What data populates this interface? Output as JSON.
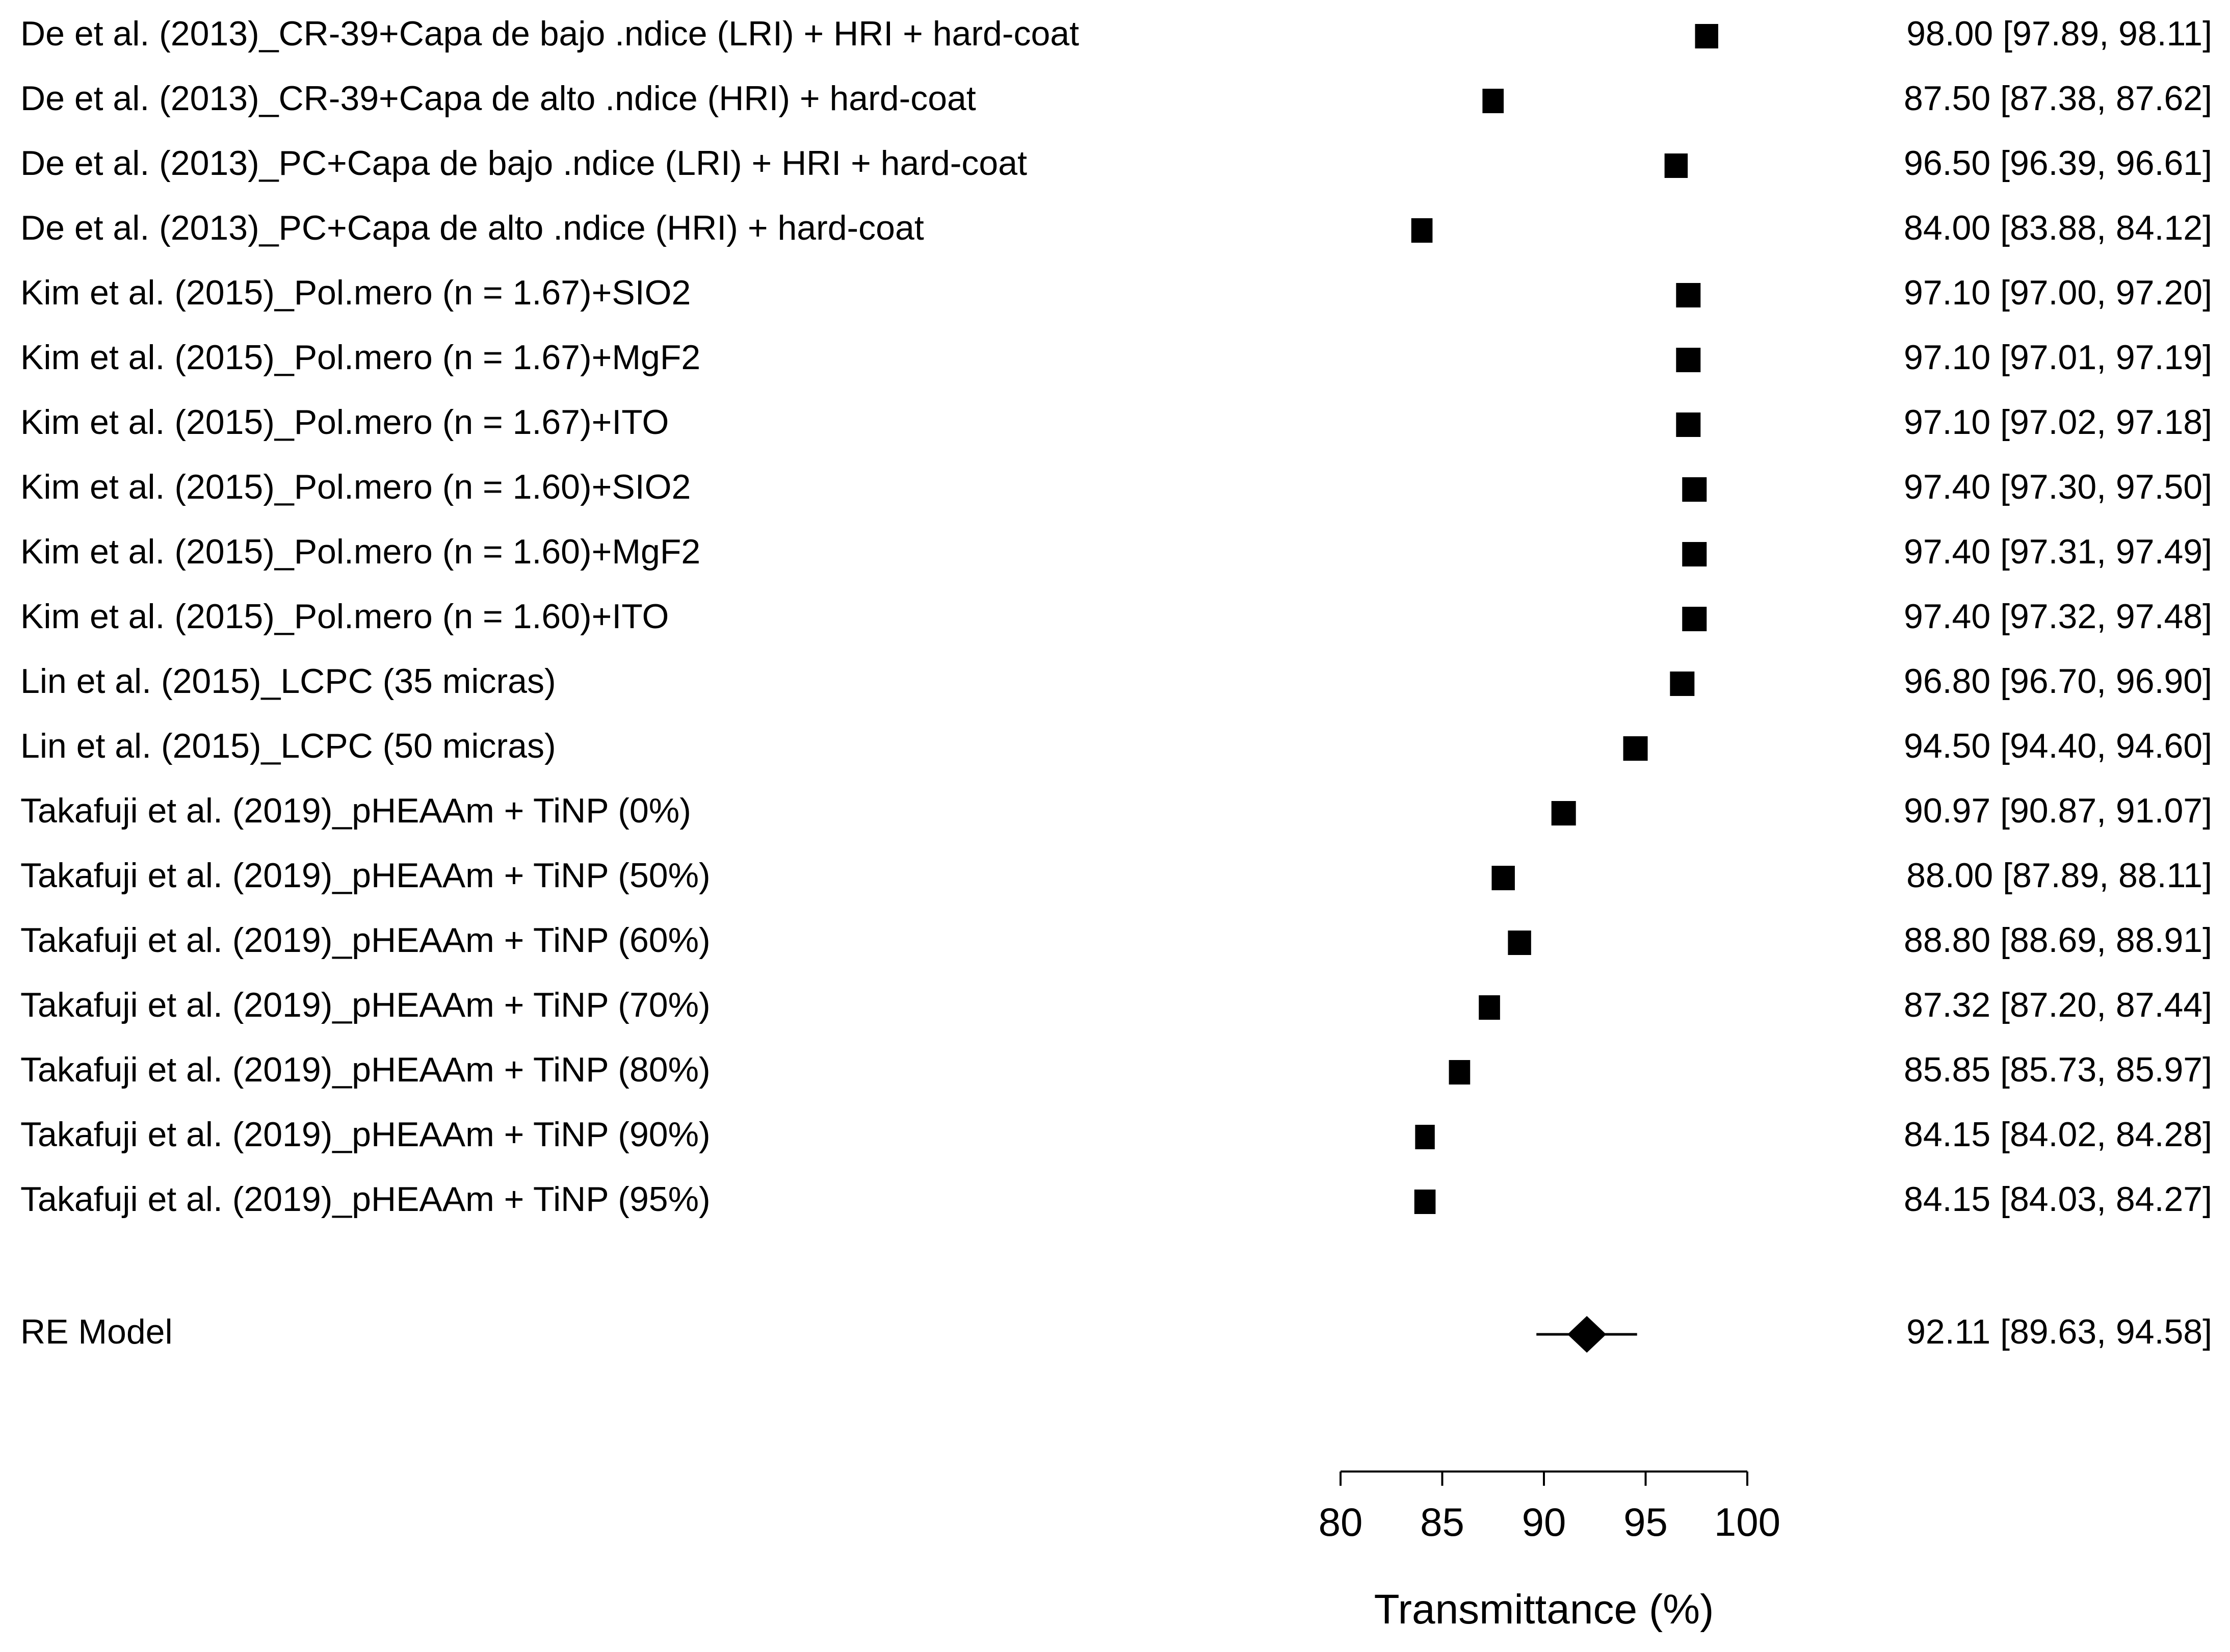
{
  "chart_data": {
    "type": "forest",
    "xlabel": "Transmittance (%)",
    "xlim": [
      80,
      100
    ],
    "xticks": [
      80,
      85,
      90,
      95,
      100
    ],
    "xtick_labels": [
      "80",
      "85",
      "90",
      "95",
      "100"
    ],
    "studies": [
      {
        "label": "De et al. (2013)_CR-39+Capa de bajo .ndice (LRI) + HRI + hard-coat",
        "estimate": 98.0,
        "ci_low": 97.89,
        "ci_high": 98.11,
        "ci_text": "98.00 [97.89, 98.11]"
      },
      {
        "label": "De et al. (2013)_CR-39+Capa de alto .ndice (HRI) + hard-coat",
        "estimate": 87.5,
        "ci_low": 87.38,
        "ci_high": 87.62,
        "ci_text": "87.50 [87.38, 87.62]"
      },
      {
        "label": "De et al. (2013)_PC+Capa de bajo .ndice (LRI) + HRI + hard-coat",
        "estimate": 96.5,
        "ci_low": 96.39,
        "ci_high": 96.61,
        "ci_text": "96.50 [96.39, 96.61]"
      },
      {
        "label": "De et al. (2013)_PC+Capa de alto .ndice (HRI) + hard-coat",
        "estimate": 84.0,
        "ci_low": 83.88,
        "ci_high": 84.12,
        "ci_text": "84.00 [83.88, 84.12]"
      },
      {
        "label": "Kim et al. (2015)_Pol.mero (n = 1.67)+SIO2",
        "estimate": 97.1,
        "ci_low": 97.0,
        "ci_high": 97.2,
        "ci_text": "97.10 [97.00, 97.20]"
      },
      {
        "label": "Kim et al. (2015)_Pol.mero (n = 1.67)+MgF2",
        "estimate": 97.1,
        "ci_low": 97.01,
        "ci_high": 97.19,
        "ci_text": "97.10 [97.01, 97.19]"
      },
      {
        "label": "Kim et al. (2015)_Pol.mero (n = 1.67)+ITO",
        "estimate": 97.1,
        "ci_low": 97.02,
        "ci_high": 97.18,
        "ci_text": "97.10 [97.02, 97.18]"
      },
      {
        "label": "Kim et al. (2015)_Pol.mero (n = 1.60)+SIO2",
        "estimate": 97.4,
        "ci_low": 97.3,
        "ci_high": 97.5,
        "ci_text": "97.40 [97.30, 97.50]"
      },
      {
        "label": "Kim et al. (2015)_Pol.mero (n = 1.60)+MgF2",
        "estimate": 97.4,
        "ci_low": 97.31,
        "ci_high": 97.49,
        "ci_text": "97.40 [97.31, 97.49]"
      },
      {
        "label": "Kim et al. (2015)_Pol.mero (n = 1.60)+ITO",
        "estimate": 97.4,
        "ci_low": 97.32,
        "ci_high": 97.48,
        "ci_text": "97.40 [97.32, 97.48]"
      },
      {
        "label": "Lin et al. (2015)_LCPC (35 micras)",
        "estimate": 96.8,
        "ci_low": 96.7,
        "ci_high": 96.9,
        "ci_text": "96.80 [96.70, 96.90]"
      },
      {
        "label": "Lin et al. (2015)_LCPC (50 micras)",
        "estimate": 94.5,
        "ci_low": 94.4,
        "ci_high": 94.6,
        "ci_text": "94.50 [94.40, 94.60]"
      },
      {
        "label": "Takafuji et al. (2019)_pHEAAm + TiNP (0%)",
        "estimate": 90.97,
        "ci_low": 90.87,
        "ci_high": 91.07,
        "ci_text": "90.97 [90.87, 91.07]"
      },
      {
        "label": "Takafuji et al. (2019)_pHEAAm + TiNP (50%)",
        "estimate": 88.0,
        "ci_low": 87.89,
        "ci_high": 88.11,
        "ci_text": "88.00 [87.89, 88.11]"
      },
      {
        "label": "Takafuji et al. (2019)_pHEAAm + TiNP (60%)",
        "estimate": 88.8,
        "ci_low": 88.69,
        "ci_high": 88.91,
        "ci_text": "88.80 [88.69, 88.91]"
      },
      {
        "label": "Takafuji et al. (2019)_pHEAAm + TiNP (70%)",
        "estimate": 87.32,
        "ci_low": 87.2,
        "ci_high": 87.44,
        "ci_text": "87.32 [87.20, 87.44]"
      },
      {
        "label": "Takafuji et al. (2019)_pHEAAm + TiNP (80%)",
        "estimate": 85.85,
        "ci_low": 85.73,
        "ci_high": 85.97,
        "ci_text": "85.85 [85.73, 85.97]"
      },
      {
        "label": "Takafuji et al. (2019)_pHEAAm + TiNP (90%)",
        "estimate": 84.15,
        "ci_low": 84.02,
        "ci_high": 84.28,
        "ci_text": "84.15 [84.02, 84.28]"
      },
      {
        "label": "Takafuji et al. (2019)_pHEAAm + TiNP (95%)",
        "estimate": 84.15,
        "ci_low": 84.03,
        "ci_high": 84.27,
        "ci_text": "84.15 [84.03, 84.27]"
      }
    ],
    "summary": {
      "label": "RE Model",
      "estimate": 92.11,
      "ci_low": 89.63,
      "ci_high": 94.58,
      "ci_text": "92.11 [89.63, 94.58]"
    },
    "marker_color": "#000000"
  }
}
